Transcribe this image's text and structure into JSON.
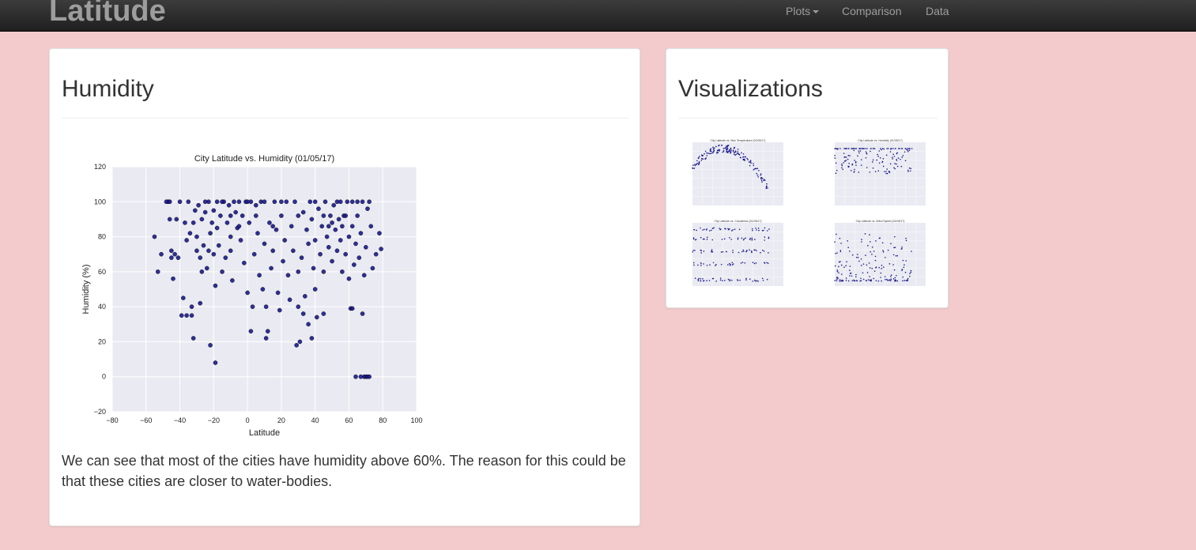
{
  "navbar": {
    "brand": "Latitude",
    "plots_label": "Plots",
    "comparison_label": "Comparison",
    "data_label": "Data"
  },
  "main": {
    "title": "Humidity",
    "description": "We can see that most of the cities have humidity above 60%. The reason for this could be that these cities are closer to water-bodies."
  },
  "side": {
    "title": "Visualizations",
    "thumbnails": [
      {
        "title": "City Latitude vs. Max Temperature (01/05/17)"
      },
      {
        "title": "City Latitude vs. Humidity (01/05/17)"
      },
      {
        "title": "City Latitude vs. Cloudiness (01/05/17)"
      },
      {
        "title": "City Latitude vs. Wind Speed (01/05/17)"
      }
    ]
  },
  "colors": {
    "point": "#1a1a8c",
    "plot_bg": "#eaeaf2",
    "page_bg": "#f3cbcc"
  },
  "chart_data": {
    "type": "scatter",
    "title": "City Latitude vs. Humidity (01/05/17)",
    "xlabel": "Latitude",
    "ylabel": "Humidity (%)",
    "xlim": [
      -80,
      100
    ],
    "ylim": [
      -20,
      120
    ],
    "xticks": [
      "-80",
      "-60",
      "-40",
      "-20",
      "0",
      "20",
      "40",
      "60",
      "80",
      "100"
    ],
    "yticks": [
      "-20",
      "0",
      "20",
      "40",
      "60",
      "80",
      "100",
      "120"
    ],
    "grid": true,
    "points": [
      [
        -55,
        80
      ],
      [
        -53,
        60
      ],
      [
        -51,
        70
      ],
      [
        -47,
        100
      ],
      [
        -46,
        100
      ],
      [
        -46,
        90
      ],
      [
        -45,
        72
      ],
      [
        -45,
        68
      ],
      [
        -44,
        56
      ],
      [
        -43,
        70
      ],
      [
        -42,
        90
      ],
      [
        -41,
        68
      ],
      [
        -39,
        35
      ],
      [
        -38,
        45
      ],
      [
        -37,
        88
      ],
      [
        -36,
        78
      ],
      [
        -36,
        35
      ],
      [
        -35,
        100
      ],
      [
        -34,
        82
      ],
      [
        -33,
        40
      ],
      [
        -33,
        35
      ],
      [
        -32,
        88
      ],
      [
        -32,
        22
      ],
      [
        -31,
        95
      ],
      [
        -30,
        72
      ],
      [
        -30,
        80
      ],
      [
        -29,
        98
      ],
      [
        -28,
        42
      ],
      [
        -28,
        68
      ],
      [
        -27,
        60
      ],
      [
        -27,
        90
      ],
      [
        -26,
        75
      ],
      [
        -25,
        94
      ],
      [
        -24,
        62
      ],
      [
        -23,
        100
      ],
      [
        -23,
        72
      ],
      [
        -22,
        18
      ],
      [
        -22,
        82
      ],
      [
        -21,
        88
      ],
      [
        -20,
        95
      ],
      [
        -20,
        70
      ],
      [
        -19,
        52
      ],
      [
        -19,
        8
      ],
      [
        -18,
        100
      ],
      [
        -18,
        85
      ],
      [
        -17,
        75
      ],
      [
        -16,
        92
      ],
      [
        -15,
        60
      ],
      [
        -14,
        100
      ],
      [
        -13,
        68
      ],
      [
        -12,
        88
      ],
      [
        -11,
        98
      ],
      [
        -10,
        80
      ],
      [
        -10,
        72
      ],
      [
        -9,
        55
      ],
      [
        -8,
        100
      ],
      [
        -7,
        94
      ],
      [
        -6,
        85
      ],
      [
        -5,
        100
      ],
      [
        -4,
        78
      ],
      [
        -3,
        92
      ],
      [
        -2,
        65
      ],
      [
        -1,
        100
      ],
      [
        0,
        48
      ],
      [
        1,
        88
      ],
      [
        2,
        100
      ],
      [
        2,
        26
      ],
      [
        3,
        40
      ],
      [
        4,
        70
      ],
      [
        5,
        98
      ],
      [
        6,
        82
      ],
      [
        7,
        58
      ],
      [
        8,
        100
      ],
      [
        9,
        50
      ],
      [
        10,
        76
      ],
      [
        11,
        22
      ],
      [
        11,
        40
      ],
      [
        12,
        26
      ],
      [
        13,
        88
      ],
      [
        14,
        62
      ],
      [
        15,
        72
      ],
      [
        16,
        100
      ],
      [
        17,
        84
      ],
      [
        18,
        48
      ],
      [
        19,
        38
      ],
      [
        20,
        92
      ],
      [
        21,
        66
      ],
      [
        22,
        78
      ],
      [
        23,
        100
      ],
      [
        24,
        58
      ],
      [
        25,
        44
      ],
      [
        26,
        86
      ],
      [
        27,
        72
      ],
      [
        28,
        100
      ],
      [
        29,
        18
      ],
      [
        30,
        60
      ],
      [
        30,
        40
      ],
      [
        31,
        20
      ],
      [
        32,
        68
      ],
      [
        33,
        94
      ],
      [
        33,
        36
      ],
      [
        34,
        46
      ],
      [
        35,
        84
      ],
      [
        36,
        30
      ],
      [
        36,
        76
      ],
      [
        37,
        100
      ],
      [
        38,
        22
      ],
      [
        38,
        90
      ],
      [
        39,
        62
      ],
      [
        40,
        78
      ],
      [
        40,
        50
      ],
      [
        41,
        34
      ],
      [
        42,
        96
      ],
      [
        43,
        70
      ],
      [
        44,
        86
      ],
      [
        45,
        60
      ],
      [
        45,
        36
      ],
      [
        46,
        100
      ],
      [
        47,
        80
      ],
      [
        48,
        74
      ],
      [
        49,
        92
      ],
      [
        50,
        88
      ],
      [
        50,
        66
      ],
      [
        51,
        98
      ],
      [
        52,
        84
      ],
      [
        53,
        72
      ],
      [
        53,
        100
      ],
      [
        54,
        90
      ],
      [
        55,
        78
      ],
      [
        56,
        86
      ],
      [
        56,
        60
      ],
      [
        57,
        92
      ],
      [
        58,
        70
      ],
      [
        59,
        100
      ],
      [
        60,
        80
      ],
      [
        60,
        56
      ],
      [
        61,
        39
      ],
      [
        62,
        39
      ],
      [
        62,
        86
      ],
      [
        63,
        64
      ],
      [
        64,
        0
      ],
      [
        64,
        76
      ],
      [
        65,
        100
      ],
      [
        65,
        92
      ],
      [
        66,
        68
      ],
      [
        67,
        0
      ],
      [
        67,
        82
      ],
      [
        68,
        100
      ],
      [
        68,
        36
      ],
      [
        69,
        58
      ],
      [
        69,
        0
      ],
      [
        70,
        74
      ],
      [
        70,
        0
      ],
      [
        71,
        0
      ],
      [
        71,
        96
      ],
      [
        72,
        100
      ],
      [
        72,
        0
      ],
      [
        73,
        86
      ],
      [
        74,
        62
      ],
      [
        76,
        70
      ],
      [
        78,
        82
      ],
      [
        79,
        73
      ],
      [
        -48,
        100
      ],
      [
        -40,
        100
      ],
      [
        -25,
        100
      ],
      [
        -15,
        100
      ],
      [
        0,
        100
      ],
      [
        10,
        100
      ],
      [
        20,
        100
      ],
      [
        40,
        100
      ],
      [
        55,
        100
      ],
      [
        62,
        100
      ],
      [
        -10,
        92
      ],
      [
        5,
        92
      ],
      [
        30,
        92
      ],
      [
        45,
        92
      ],
      [
        58,
        92
      ],
      [
        -5,
        86
      ],
      [
        15,
        86
      ],
      [
        48,
        86
      ]
    ]
  }
}
